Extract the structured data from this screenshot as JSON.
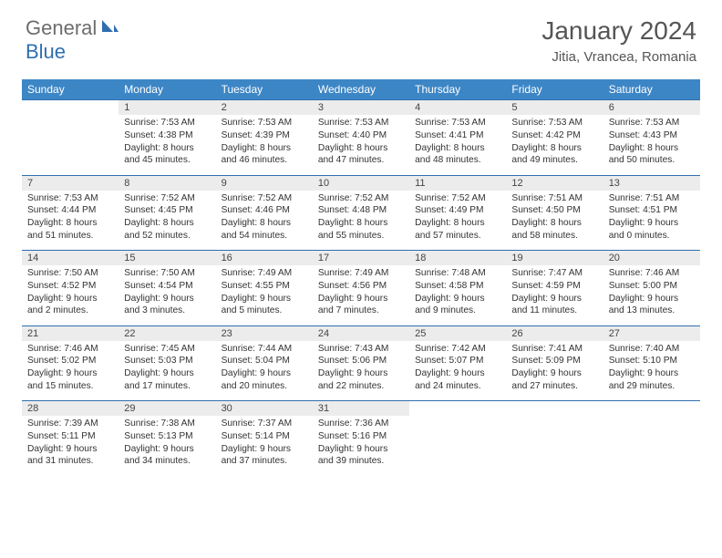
{
  "logo": {
    "general": "General",
    "blue": "Blue"
  },
  "title": "January 2024",
  "location": "Jitia, Vrancea, Romania",
  "colors": {
    "header_bg": "#3d86c6",
    "header_text": "#ffffff",
    "daynum_bg": "#ececec",
    "border": "#2f6fb0",
    "body_text": "#333333",
    "title_text": "#555555",
    "logo_gray": "#6d6d6d",
    "logo_blue": "#2f6fb0"
  },
  "weekdays": [
    "Sunday",
    "Monday",
    "Tuesday",
    "Wednesday",
    "Thursday",
    "Friday",
    "Saturday"
  ],
  "weeks": [
    [
      null,
      {
        "n": "1",
        "sr": "Sunrise: 7:53 AM",
        "ss": "Sunset: 4:38 PM",
        "d1": "Daylight: 8 hours",
        "d2": "and 45 minutes."
      },
      {
        "n": "2",
        "sr": "Sunrise: 7:53 AM",
        "ss": "Sunset: 4:39 PM",
        "d1": "Daylight: 8 hours",
        "d2": "and 46 minutes."
      },
      {
        "n": "3",
        "sr": "Sunrise: 7:53 AM",
        "ss": "Sunset: 4:40 PM",
        "d1": "Daylight: 8 hours",
        "d2": "and 47 minutes."
      },
      {
        "n": "4",
        "sr": "Sunrise: 7:53 AM",
        "ss": "Sunset: 4:41 PM",
        "d1": "Daylight: 8 hours",
        "d2": "and 48 minutes."
      },
      {
        "n": "5",
        "sr": "Sunrise: 7:53 AM",
        "ss": "Sunset: 4:42 PM",
        "d1": "Daylight: 8 hours",
        "d2": "and 49 minutes."
      },
      {
        "n": "6",
        "sr": "Sunrise: 7:53 AM",
        "ss": "Sunset: 4:43 PM",
        "d1": "Daylight: 8 hours",
        "d2": "and 50 minutes."
      }
    ],
    [
      {
        "n": "7",
        "sr": "Sunrise: 7:53 AM",
        "ss": "Sunset: 4:44 PM",
        "d1": "Daylight: 8 hours",
        "d2": "and 51 minutes."
      },
      {
        "n": "8",
        "sr": "Sunrise: 7:52 AM",
        "ss": "Sunset: 4:45 PM",
        "d1": "Daylight: 8 hours",
        "d2": "and 52 minutes."
      },
      {
        "n": "9",
        "sr": "Sunrise: 7:52 AM",
        "ss": "Sunset: 4:46 PM",
        "d1": "Daylight: 8 hours",
        "d2": "and 54 minutes."
      },
      {
        "n": "10",
        "sr": "Sunrise: 7:52 AM",
        "ss": "Sunset: 4:48 PM",
        "d1": "Daylight: 8 hours",
        "d2": "and 55 minutes."
      },
      {
        "n": "11",
        "sr": "Sunrise: 7:52 AM",
        "ss": "Sunset: 4:49 PM",
        "d1": "Daylight: 8 hours",
        "d2": "and 57 minutes."
      },
      {
        "n": "12",
        "sr": "Sunrise: 7:51 AM",
        "ss": "Sunset: 4:50 PM",
        "d1": "Daylight: 8 hours",
        "d2": "and 58 minutes."
      },
      {
        "n": "13",
        "sr": "Sunrise: 7:51 AM",
        "ss": "Sunset: 4:51 PM",
        "d1": "Daylight: 9 hours",
        "d2": "and 0 minutes."
      }
    ],
    [
      {
        "n": "14",
        "sr": "Sunrise: 7:50 AM",
        "ss": "Sunset: 4:52 PM",
        "d1": "Daylight: 9 hours",
        "d2": "and 2 minutes."
      },
      {
        "n": "15",
        "sr": "Sunrise: 7:50 AM",
        "ss": "Sunset: 4:54 PM",
        "d1": "Daylight: 9 hours",
        "d2": "and 3 minutes."
      },
      {
        "n": "16",
        "sr": "Sunrise: 7:49 AM",
        "ss": "Sunset: 4:55 PM",
        "d1": "Daylight: 9 hours",
        "d2": "and 5 minutes."
      },
      {
        "n": "17",
        "sr": "Sunrise: 7:49 AM",
        "ss": "Sunset: 4:56 PM",
        "d1": "Daylight: 9 hours",
        "d2": "and 7 minutes."
      },
      {
        "n": "18",
        "sr": "Sunrise: 7:48 AM",
        "ss": "Sunset: 4:58 PM",
        "d1": "Daylight: 9 hours",
        "d2": "and 9 minutes."
      },
      {
        "n": "19",
        "sr": "Sunrise: 7:47 AM",
        "ss": "Sunset: 4:59 PM",
        "d1": "Daylight: 9 hours",
        "d2": "and 11 minutes."
      },
      {
        "n": "20",
        "sr": "Sunrise: 7:46 AM",
        "ss": "Sunset: 5:00 PM",
        "d1": "Daylight: 9 hours",
        "d2": "and 13 minutes."
      }
    ],
    [
      {
        "n": "21",
        "sr": "Sunrise: 7:46 AM",
        "ss": "Sunset: 5:02 PM",
        "d1": "Daylight: 9 hours",
        "d2": "and 15 minutes."
      },
      {
        "n": "22",
        "sr": "Sunrise: 7:45 AM",
        "ss": "Sunset: 5:03 PM",
        "d1": "Daylight: 9 hours",
        "d2": "and 17 minutes."
      },
      {
        "n": "23",
        "sr": "Sunrise: 7:44 AM",
        "ss": "Sunset: 5:04 PM",
        "d1": "Daylight: 9 hours",
        "d2": "and 20 minutes."
      },
      {
        "n": "24",
        "sr": "Sunrise: 7:43 AM",
        "ss": "Sunset: 5:06 PM",
        "d1": "Daylight: 9 hours",
        "d2": "and 22 minutes."
      },
      {
        "n": "25",
        "sr": "Sunrise: 7:42 AM",
        "ss": "Sunset: 5:07 PM",
        "d1": "Daylight: 9 hours",
        "d2": "and 24 minutes."
      },
      {
        "n": "26",
        "sr": "Sunrise: 7:41 AM",
        "ss": "Sunset: 5:09 PM",
        "d1": "Daylight: 9 hours",
        "d2": "and 27 minutes."
      },
      {
        "n": "27",
        "sr": "Sunrise: 7:40 AM",
        "ss": "Sunset: 5:10 PM",
        "d1": "Daylight: 9 hours",
        "d2": "and 29 minutes."
      }
    ],
    [
      {
        "n": "28",
        "sr": "Sunrise: 7:39 AM",
        "ss": "Sunset: 5:11 PM",
        "d1": "Daylight: 9 hours",
        "d2": "and 31 minutes."
      },
      {
        "n": "29",
        "sr": "Sunrise: 7:38 AM",
        "ss": "Sunset: 5:13 PM",
        "d1": "Daylight: 9 hours",
        "d2": "and 34 minutes."
      },
      {
        "n": "30",
        "sr": "Sunrise: 7:37 AM",
        "ss": "Sunset: 5:14 PM",
        "d1": "Daylight: 9 hours",
        "d2": "and 37 minutes."
      },
      {
        "n": "31",
        "sr": "Sunrise: 7:36 AM",
        "ss": "Sunset: 5:16 PM",
        "d1": "Daylight: 9 hours",
        "d2": "and 39 minutes."
      },
      null,
      null,
      null
    ]
  ]
}
